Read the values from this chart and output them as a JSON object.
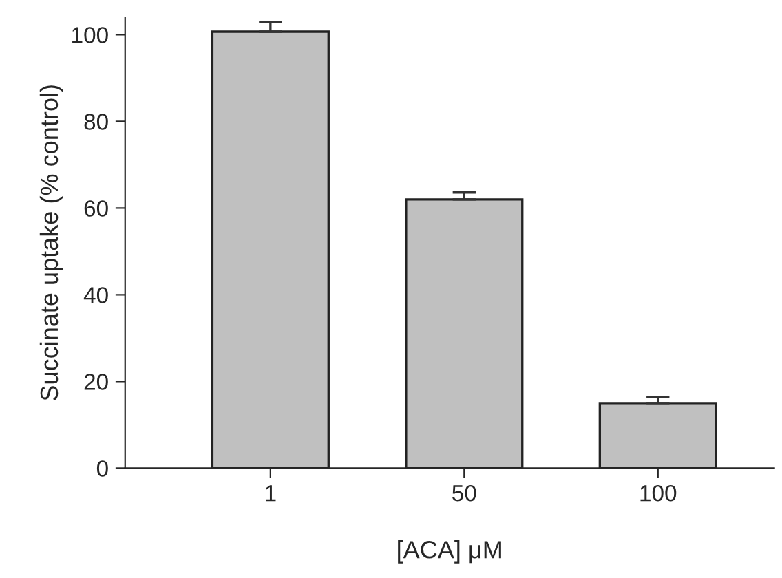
{
  "chart_data": {
    "type": "bar",
    "xlabel": "[ACA] μM",
    "ylabel": "Succinate uptake (% control)",
    "categories": [
      "1",
      "50",
      "100"
    ],
    "values": [
      100.7,
      62.0,
      15.0
    ],
    "color": "#c0c0c0",
    "errors": [
      [
        100.7,
        102.9
      ],
      [
        62.0,
        63.6
      ],
      [
        15.0,
        16.4
      ]
    ],
    "ylim": [
      0,
      104
    ],
    "yticks": [
      0,
      20,
      40,
      60,
      80,
      100
    ],
    "grid": false
  }
}
